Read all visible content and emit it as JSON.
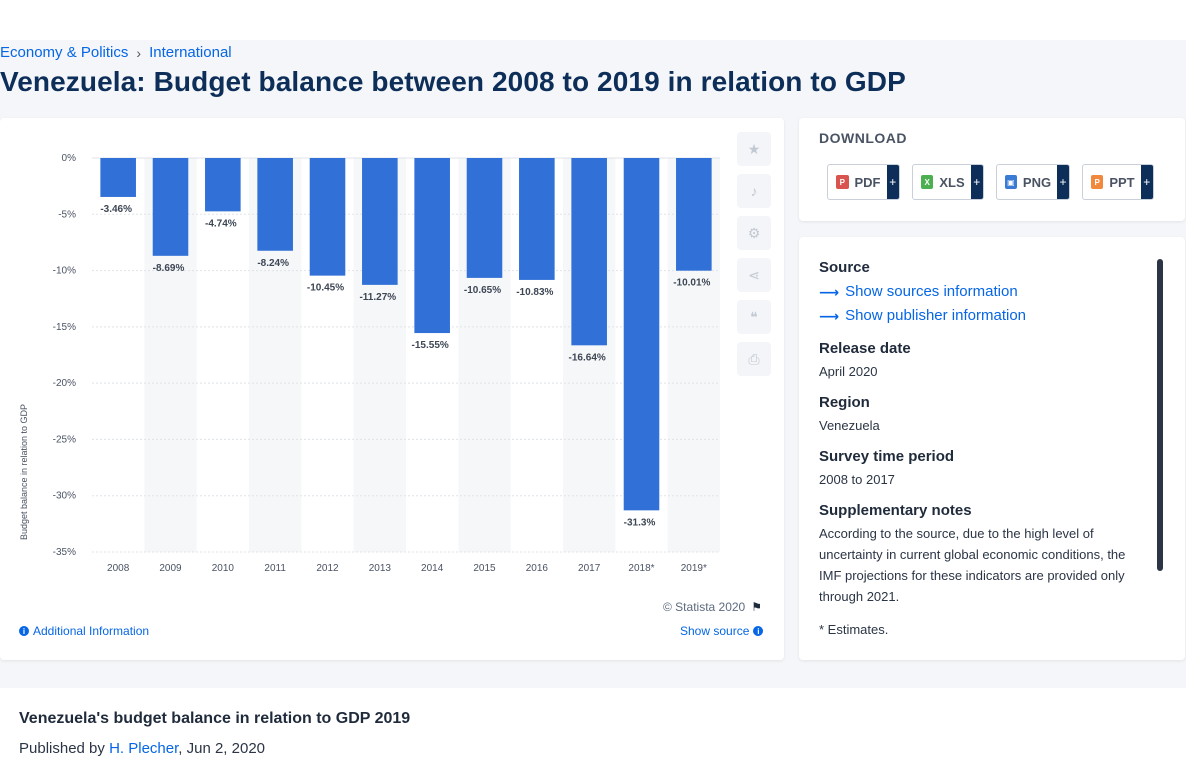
{
  "breadcrumb": [
    "Economy & Politics",
    "International"
  ],
  "page_title": "Venezuela: Budget balance between 2008 to 2019 in relation to GDP",
  "chart_data": {
    "type": "bar",
    "categories": [
      "2008",
      "2009",
      "2010",
      "2011",
      "2012",
      "2013",
      "2014",
      "2015",
      "2016",
      "2017",
      "2018*",
      "2019*"
    ],
    "values": [
      -3.46,
      -8.69,
      -4.74,
      -8.24,
      -10.45,
      -11.27,
      -15.55,
      -10.65,
      -10.83,
      -16.64,
      -31.3,
      -10.01
    ],
    "data_labels": [
      "-3.46%",
      "-8.69%",
      "-4.74%",
      "-8.24%",
      "-10.45%",
      "-11.27%",
      "-15.55%",
      "-10.65%",
      "-10.83%",
      "-16.64%",
      "-31.3%",
      "-10.01%"
    ],
    "ylabel": "Budget balance in relation to GDP",
    "ylim": [
      -35,
      0
    ],
    "yticks": [
      0,
      -5,
      -10,
      -15,
      -20,
      -25,
      -30,
      -35
    ],
    "ytick_labels": [
      "0%",
      "-5%",
      "-10%",
      "-15%",
      "-20%",
      "-25%",
      "-30%",
      "-35%"
    ],
    "bar_color": "#3170d6",
    "grid": true
  },
  "chart_footer": {
    "copyright": "© Statista 2020",
    "additional_info": "Additional Information",
    "show_source": "Show source"
  },
  "toolbar": {
    "icons": [
      "star-icon",
      "bell-icon",
      "gear-icon",
      "share-icon",
      "quote-icon",
      "print-icon"
    ]
  },
  "download": {
    "title": "DOWNLOAD",
    "buttons": [
      {
        "label": "PDF",
        "color": "#d9534f"
      },
      {
        "label": "XLS",
        "color": "#4caf50"
      },
      {
        "label": "PNG",
        "color": "#3a7bd5"
      },
      {
        "label": "PPT",
        "color": "#f0883e"
      }
    ],
    "plus": "+"
  },
  "source_panel": {
    "source_heading": "Source",
    "show_sources": "Show sources information",
    "show_publisher": "Show publisher information",
    "release_heading": "Release date",
    "release_value": "April 2020",
    "region_heading": "Region",
    "region_value": "Venezuela",
    "survey_heading": "Survey time period",
    "survey_value": "2008 to 2017",
    "notes_heading": "Supplementary notes",
    "notes_value": "According to the source, due to the high level of uncertainty in current global economic conditions, the IMF projections for these indicators are provided only through 2021.",
    "estimates": "* Estimates."
  },
  "article": {
    "title": "Venezuela's budget balance in relation to GDP 2019",
    "published_prefix": "Published by",
    "author": "H. Plecher",
    "date": ", Jun 2, 2020"
  }
}
